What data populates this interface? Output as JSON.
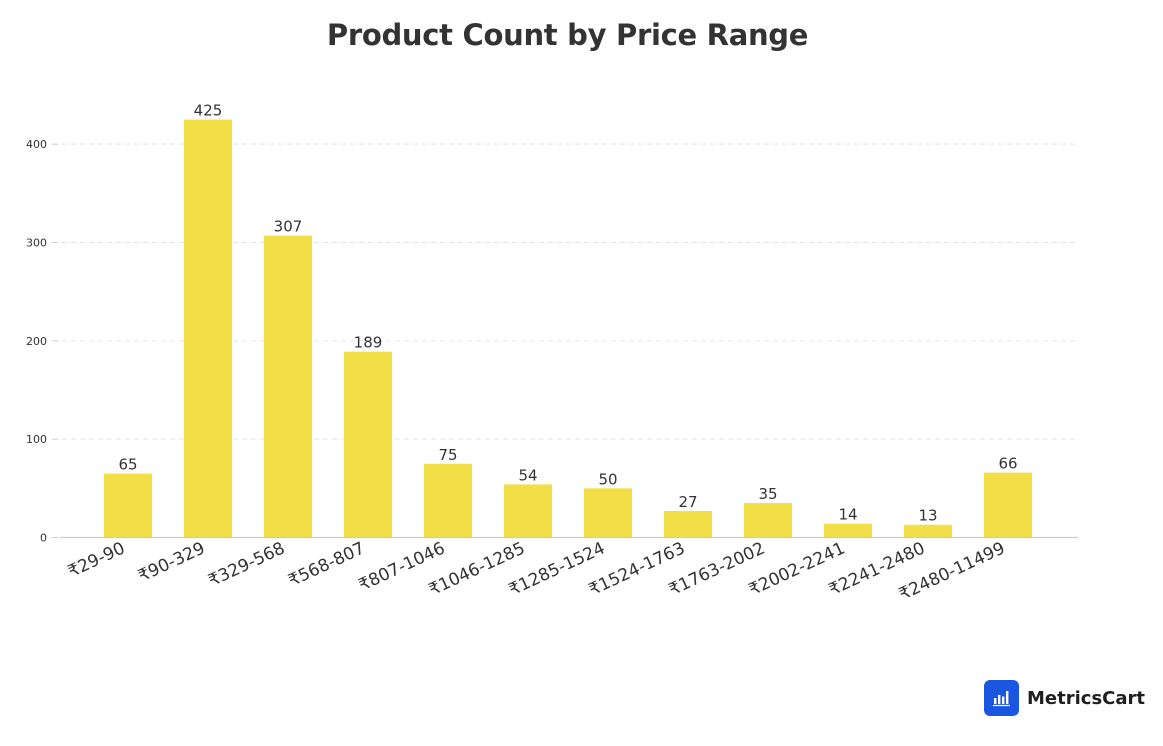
{
  "colors": {
    "bar": "#f2de47",
    "title": "#333333",
    "grid": "#e3e3e3",
    "axis": "#cccccc",
    "text": "#333333",
    "brand_logo": "#1b56e0"
  },
  "chart_data": {
    "type": "bar",
    "title": "Product Count by Price Range",
    "xlabel": "",
    "ylabel": "",
    "categories": [
      "₹29-90",
      "₹90-329",
      "₹329-568",
      "₹568-807",
      "₹807-1046",
      "₹1046-1285",
      "₹1285-1524",
      "₹1524-1763",
      "₹1763-2002",
      "₹2002-2241",
      "₹2241-2480",
      "₹2480-11499"
    ],
    "values": [
      65,
      425,
      307,
      189,
      75,
      54,
      50,
      27,
      35,
      14,
      13,
      66
    ],
    "ylim": [
      0,
      440
    ],
    "yticks": [
      0,
      100,
      200,
      300,
      400
    ],
    "grid": true,
    "data_labels": true,
    "legend": "none"
  },
  "brand": {
    "name": "MetricsCart",
    "logo_icon": "bar-chart-icon"
  }
}
